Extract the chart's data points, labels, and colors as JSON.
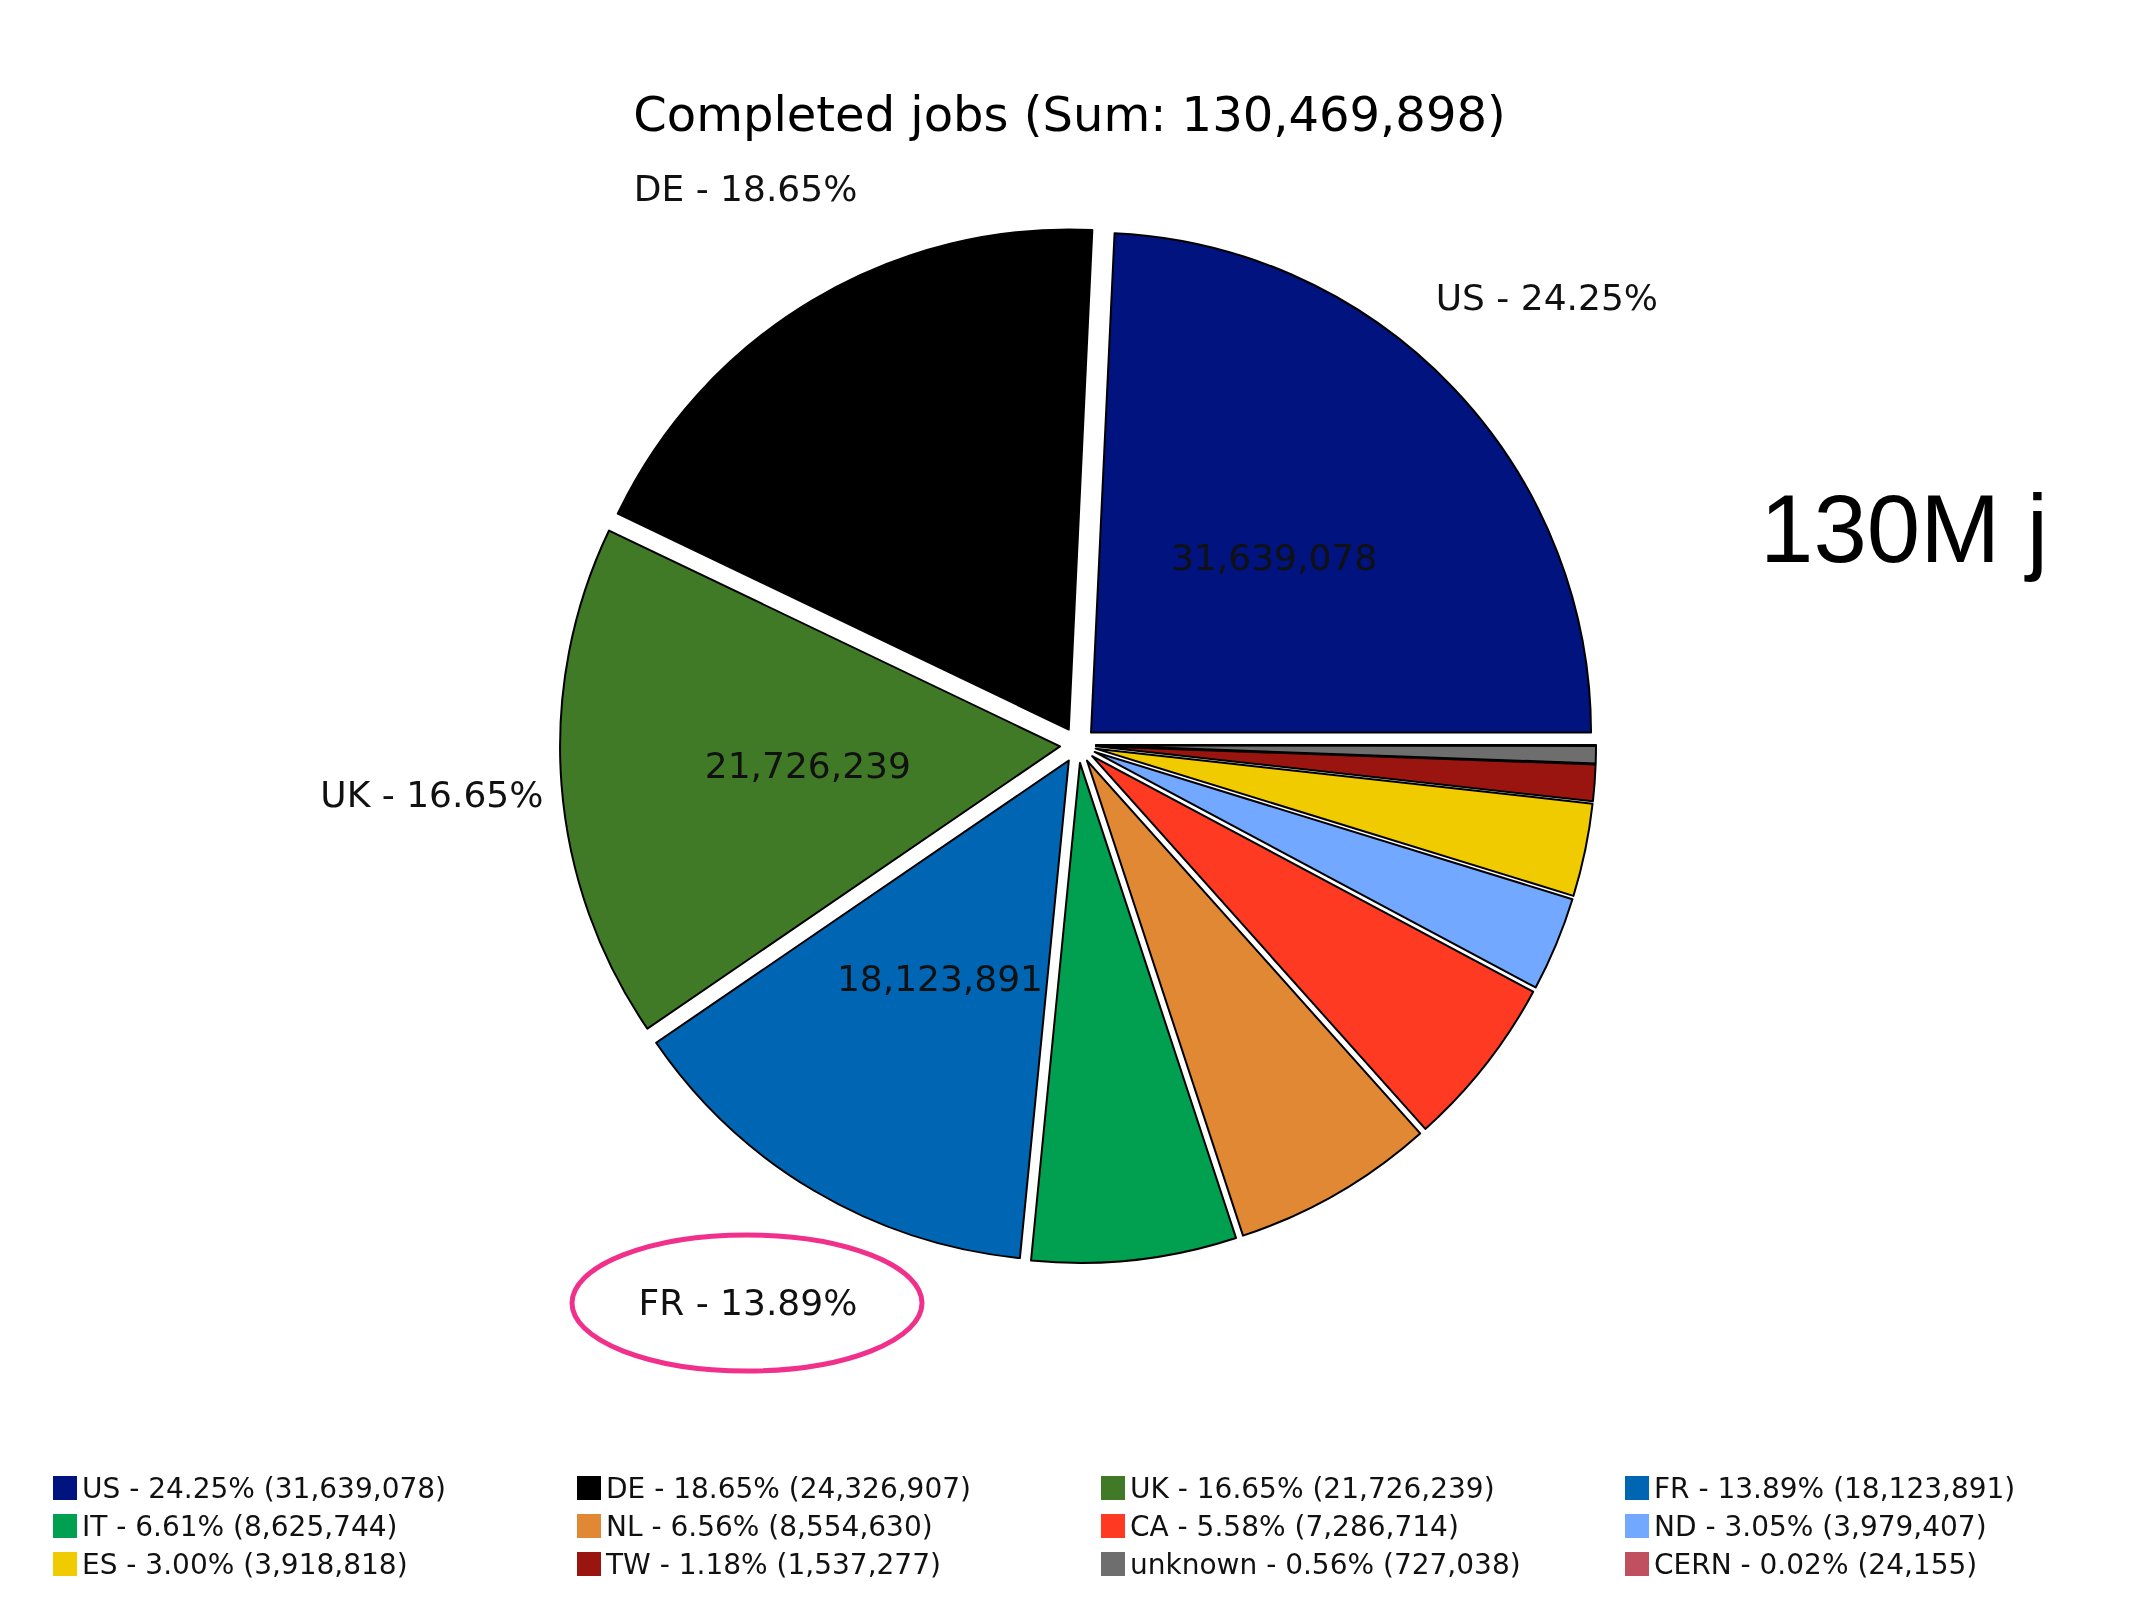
{
  "chart_data": {
    "type": "pie",
    "title": "Completed jobs (Sum: 130,469,898)",
    "categories": [
      "US - 24.25% (31,639,078)",
      "DE - 18.65% (24,326,907)",
      "UK - 16.65% (21,726,239)",
      "FR - 13.89% (18,123,891)",
      "IT - 6.61% (8,625,744)",
      "NL - 6.56% (8,554,630)",
      "CA - 5.58% (7,286,714)",
      "ND - 3.05% (3,979,407)",
      "ES - 3.00% (3,918,818)",
      "TW - 1.18% (1,537,277)",
      "unknown - 0.56% (727,038)",
      "CERN - 0.02% (24,155)"
    ],
    "values": [
      31639078,
      24326907,
      21726239,
      18123891,
      8625744,
      8554630,
      7286714,
      3979407,
      3918818,
      1537277,
      727038,
      24155
    ],
    "colors": [
      "#00137f",
      "#000000",
      "#417a27",
      "#0066b3",
      "#00a050",
      "#e08833",
      "#ff3a22",
      "#72a8ff",
      "#efcb00",
      "#9b1510",
      "#6e6e6e",
      "#c0505f"
    ],
    "value_labels": [
      "31,639,078",
      null,
      "21,726,239",
      "18,123,891",
      null,
      null,
      null,
      null,
      null,
      null,
      null,
      null
    ],
    "annotations": [
      {
        "text": "US - 24.25%",
        "x": "US - 24.25% (31,639,078)"
      },
      {
        "text": "DE - 18.65%",
        "x": "DE - 18.65% (24,326,907)"
      },
      {
        "text": "UK - 16.65%",
        "x": "UK - 16.65% (21,726,239)"
      },
      {
        "text": "FR - 13.89%",
        "x": "FR - 13.89% (18,123,891)"
      },
      "130M j"
    ],
    "legend": "bottom"
  }
}
